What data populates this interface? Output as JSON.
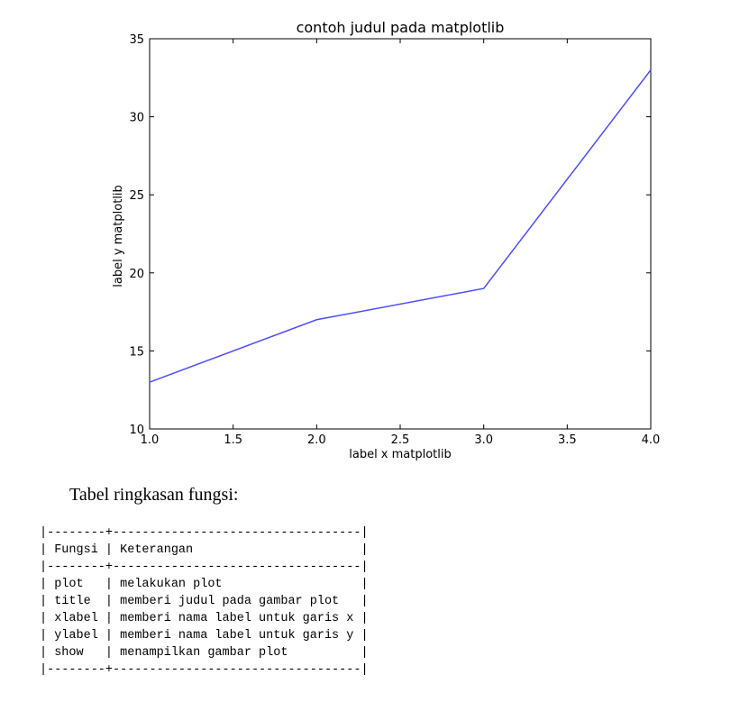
{
  "chart_data": {
    "type": "line",
    "title": "contoh judul pada matplotlib",
    "xlabel": "label x matplotlib",
    "ylabel": "label y matplotlib",
    "x": [
      1.0,
      2.0,
      3.0,
      4.0
    ],
    "series": [
      {
        "values": [
          13,
          17,
          19,
          33
        ]
      }
    ],
    "xlim": [
      1.0,
      4.0
    ],
    "ylim": [
      10,
      35
    ],
    "xticks": [
      "1.0",
      "1.5",
      "2.0",
      "2.5",
      "3.0",
      "3.5",
      "4.0"
    ],
    "yticks": [
      "10",
      "15",
      "20",
      "25",
      "30",
      "35"
    ],
    "line_color": "#4d4dff",
    "grid": false
  },
  "caption": "Tabel ringkasan fungsi:",
  "table": {
    "border_line": "|--------+----------------------------------|",
    "header": "| Fungsi | Keterangan                       |",
    "rows": [
      "| plot   | melakukan plot                   |",
      "| title  | memberi judul pada gambar plot   |",
      "| xlabel | memberi nama label untuk garis x |",
      "| ylabel | memberi nama label untuk garis y |",
      "| show   | menampilkan gambar plot          |"
    ]
  }
}
